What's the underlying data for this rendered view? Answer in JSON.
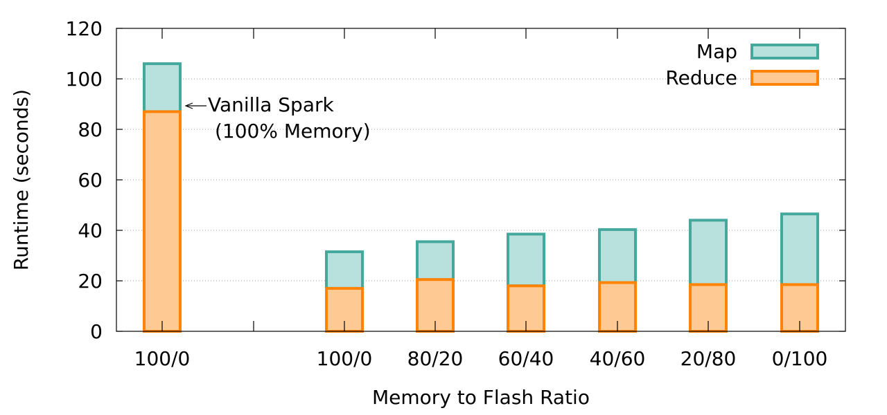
{
  "chart_data": {
    "type": "bar",
    "stacked": true,
    "xlabel": "Memory to Flash Ratio",
    "ylabel": "Runtime (seconds)",
    "ylim": [
      0,
      120
    ],
    "yticks": [
      "0",
      "20",
      "40",
      "60",
      "80",
      "100",
      "120"
    ],
    "grid": true,
    "legend": "top-right",
    "categories": [
      "100/0",
      "100/0",
      "80/20",
      "60/40",
      "40/60",
      "20/80",
      "0/100"
    ],
    "series": [
      {
        "name": "Map",
        "values": [
          19,
          14.5,
          15,
          20.5,
          21,
          25.5,
          28
        ],
        "fill": "#b8e0dc",
        "stroke": "#45a89c"
      },
      {
        "name": "Reduce",
        "values": [
          87,
          17,
          20.5,
          18,
          19.3,
          18.5,
          18.5
        ],
        "fill": "#ffc994",
        "stroke": "#ff8307"
      }
    ],
    "annotation": {
      "line1": "Vanilla Spark",
      "line2": "(100% Memory)"
    }
  }
}
